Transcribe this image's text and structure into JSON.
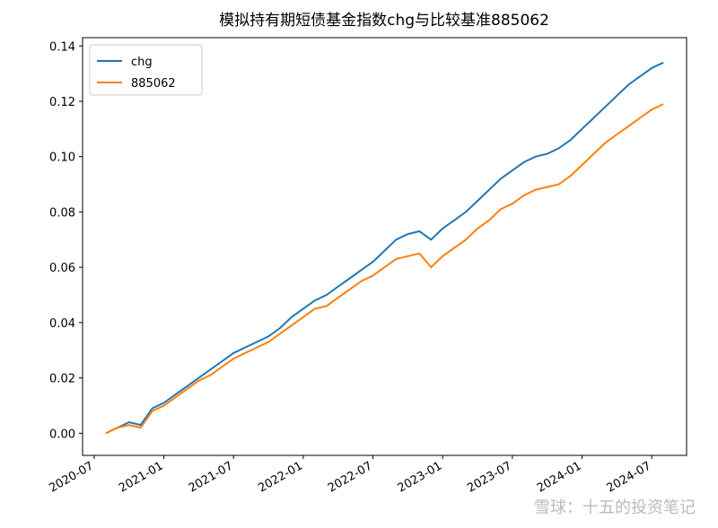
{
  "chart_data": {
    "type": "line",
    "title": "模拟持有期短债基金指数chg与比较基准885062",
    "x": [
      "2020-08",
      "2020-09",
      "2020-10",
      "2020-11",
      "2020-12",
      "2021-01",
      "2021-02",
      "2021-03",
      "2021-04",
      "2021-05",
      "2021-06",
      "2021-07",
      "2021-08",
      "2021-09",
      "2021-10",
      "2021-11",
      "2021-12",
      "2022-01",
      "2022-02",
      "2022-03",
      "2022-04",
      "2022-05",
      "2022-06",
      "2022-07",
      "2022-08",
      "2022-09",
      "2022-10",
      "2022-11",
      "2022-12",
      "2023-01",
      "2023-02",
      "2023-03",
      "2023-04",
      "2023-05",
      "2023-06",
      "2023-07",
      "2023-08",
      "2023-09",
      "2023-10",
      "2023-11",
      "2023-12",
      "2024-01",
      "2024-02",
      "2024-03",
      "2024-04",
      "2024-05",
      "2024-06",
      "2024-07",
      "2024-08"
    ],
    "series": [
      {
        "name": "chg",
        "color": "#1f77b4",
        "values": [
          0.0,
          0.002,
          0.004,
          0.003,
          0.009,
          0.011,
          0.014,
          0.017,
          0.02,
          0.023,
          0.026,
          0.029,
          0.031,
          0.033,
          0.035,
          0.038,
          0.042,
          0.045,
          0.048,
          0.05,
          0.053,
          0.056,
          0.059,
          0.062,
          0.066,
          0.07,
          0.072,
          0.073,
          0.07,
          0.074,
          0.077,
          0.08,
          0.084,
          0.088,
          0.092,
          0.095,
          0.098,
          0.1,
          0.101,
          0.103,
          0.106,
          0.11,
          0.114,
          0.118,
          0.122,
          0.126,
          0.129,
          0.132,
          0.134
        ]
      },
      {
        "name": "885062",
        "color": "#ff7f0e",
        "values": [
          0,
          0.002,
          0.003,
          0.002,
          0.008,
          0.01,
          0.013,
          0.016,
          0.019,
          0.021,
          0.024,
          0.027,
          0.029,
          0.031,
          0.033,
          0.036,
          0.039,
          0.042,
          0.045,
          0.046,
          0.049,
          0.052,
          0.055,
          0.057,
          0.06,
          0.063,
          0.064,
          0.065,
          0.06,
          0.064,
          0.067,
          0.07,
          0.074,
          0.077,
          0.081,
          0.083,
          0.086,
          0.088,
          0.089,
          0.09,
          0.093,
          0.097,
          0.101,
          0.105,
          0.108,
          0.111,
          0.114,
          0.117,
          0.119
        ]
      }
    ],
    "xlim": [
      "2020-06",
      "2024-10"
    ],
    "xticks": [
      "2020-07",
      "2021-01",
      "2021-07",
      "2022-01",
      "2022-07",
      "2023-01",
      "2023-07",
      "2024-01",
      "2024-07"
    ],
    "ylim": [
      -0.008,
      0.143
    ],
    "yticks": [
      {
        "value": 0,
        "label": "0.00"
      },
      {
        "value": 0.02,
        "label": "0.02"
      },
      {
        "value": 0.04,
        "label": "0.04"
      },
      {
        "value": 0.06,
        "label": "0.06"
      },
      {
        "value": 0.08,
        "label": "0.08"
      },
      {
        "value": 0.1,
        "label": "0.10"
      },
      {
        "value": 0.12,
        "label": "0.12"
      },
      {
        "value": 0.14,
        "label": "0.14"
      }
    ],
    "legend": "upper left",
    "grid": false
  },
  "watermark": "雪球：十五的投资笔记"
}
